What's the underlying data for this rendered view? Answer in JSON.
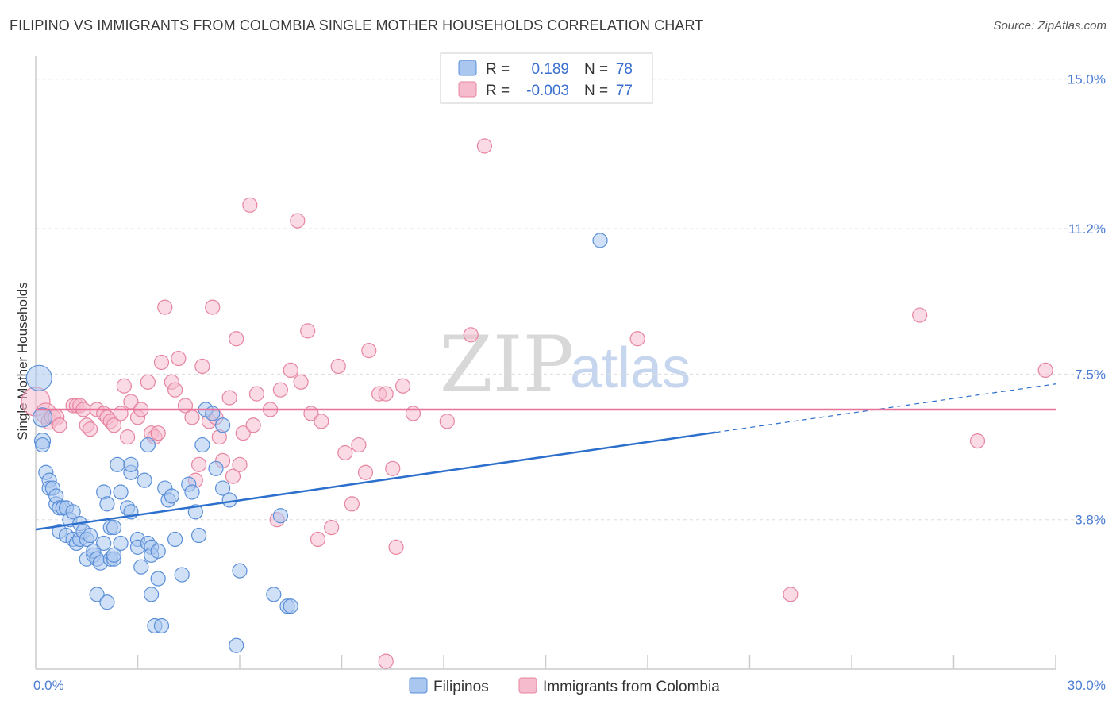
{
  "title": "FILIPINO VS IMMIGRANTS FROM COLOMBIA SINGLE MOTHER HOUSEHOLDS CORRELATION CHART",
  "source": "Source: ZipAtlas.com",
  "watermark": {
    "part1": "ZIP",
    "part2": "atlas"
  },
  "colors": {
    "blue_fill": "#a9c7ef",
    "blue_stroke": "#5a8fd8",
    "blue_line": "#2c6fcc",
    "pink_fill": "#f6bccd",
    "pink_stroke": "#e6859f",
    "pink_line": "#e8739a",
    "tick": "#4a7cd4",
    "grid": "#dddddd"
  },
  "legend": {
    "rows": [
      {
        "series": "blue",
        "r_label": "R =",
        "r_value": "0.189",
        "n_label": "N =",
        "n_value": "78"
      },
      {
        "series": "pink",
        "r_label": "R =",
        "r_value": "-0.003",
        "n_label": "N =",
        "n_value": "77"
      }
    ]
  },
  "chart_data": {
    "type": "scatter",
    "title": "FILIPINO VS IMMIGRANTS FROM COLOMBIA SINGLE MOTHER HOUSEHOLDS CORRELATION CHART",
    "xlabel": "",
    "ylabel": "Single Mother Households",
    "xlim": [
      0,
      30
    ],
    "ylim": [
      0,
      15.6
    ],
    "x_tick_labels": [
      {
        "value": 0,
        "label": "0.0%"
      },
      {
        "value": 30,
        "label": "30.0%"
      }
    ],
    "y_tick_labels": [
      {
        "value": 3.8,
        "label": "3.8%"
      },
      {
        "value": 7.5,
        "label": "7.5%"
      },
      {
        "value": 11.2,
        "label": "11.2%"
      },
      {
        "value": 15.0,
        "label": "15.0%"
      }
    ],
    "series": [
      {
        "name": "Filipinos",
        "color": "blue",
        "trend": {
          "x0": 0,
          "y0": 3.55,
          "x1": 20,
          "y1": 6.02,
          "dash_to_x": 30,
          "dash_to_y": 7.25
        },
        "points": [
          [
            0.1,
            7.4,
            16
          ],
          [
            0.2,
            6.4,
            12
          ],
          [
            0.2,
            5.8,
            10
          ],
          [
            0.2,
            5.7,
            9
          ],
          [
            0.3,
            5.0,
            9
          ],
          [
            0.4,
            4.8,
            9
          ],
          [
            0.4,
            4.6,
            9
          ],
          [
            0.5,
            4.6,
            9
          ],
          [
            0.6,
            4.2,
            9
          ],
          [
            0.6,
            4.4,
            9
          ],
          [
            0.7,
            4.1,
            9
          ],
          [
            0.7,
            3.5,
            9
          ],
          [
            0.8,
            4.1,
            9
          ],
          [
            0.9,
            4.1,
            9
          ],
          [
            0.9,
            3.4,
            9
          ],
          [
            1.0,
            3.8,
            9
          ],
          [
            1.1,
            4.0,
            9
          ],
          [
            1.1,
            3.3,
            9
          ],
          [
            1.2,
            3.2,
            9
          ],
          [
            1.3,
            3.7,
            9
          ],
          [
            1.3,
            3.3,
            9
          ],
          [
            1.4,
            3.5,
            9
          ],
          [
            1.5,
            3.3,
            9
          ],
          [
            1.5,
            2.8,
            9
          ],
          [
            1.6,
            3.4,
            9
          ],
          [
            1.7,
            2.9,
            9
          ],
          [
            1.7,
            3.0,
            9
          ],
          [
            1.8,
            2.8,
            9
          ],
          [
            1.8,
            1.9,
            9
          ],
          [
            1.9,
            2.7,
            9
          ],
          [
            2.0,
            4.5,
            9
          ],
          [
            2.0,
            3.2,
            9
          ],
          [
            2.1,
            4.2,
            9
          ],
          [
            2.1,
            1.7,
            9
          ],
          [
            2.2,
            3.6,
            9
          ],
          [
            2.2,
            2.8,
            9
          ],
          [
            2.3,
            2.8,
            9
          ],
          [
            2.3,
            3.6,
            9
          ],
          [
            2.3,
            2.9,
            9
          ],
          [
            2.4,
            5.2,
            9
          ],
          [
            2.5,
            4.5,
            9
          ],
          [
            2.5,
            3.2,
            9
          ],
          [
            2.7,
            4.1,
            9
          ],
          [
            2.8,
            5.0,
            9
          ],
          [
            2.8,
            5.2,
            9
          ],
          [
            2.8,
            4.0,
            9
          ],
          [
            3.0,
            3.3,
            9
          ],
          [
            3.0,
            3.1,
            9
          ],
          [
            3.1,
            2.6,
            9
          ],
          [
            3.2,
            4.8,
            9
          ],
          [
            3.3,
            5.7,
            9
          ],
          [
            3.3,
            3.2,
            9
          ],
          [
            3.4,
            3.1,
            9
          ],
          [
            3.4,
            2.9,
            9
          ],
          [
            3.4,
            1.9,
            9
          ],
          [
            3.5,
            1.1,
            9
          ],
          [
            3.6,
            2.3,
            9
          ],
          [
            3.6,
            3.0,
            9
          ],
          [
            3.7,
            1.1,
            9
          ],
          [
            3.8,
            4.6,
            9
          ],
          [
            3.9,
            4.3,
            9
          ],
          [
            4.0,
            4.4,
            9
          ],
          [
            4.1,
            3.3,
            9
          ],
          [
            4.3,
            2.4,
            9
          ],
          [
            4.5,
            4.7,
            9
          ],
          [
            4.6,
            4.5,
            9
          ],
          [
            4.7,
            4.0,
            9
          ],
          [
            4.8,
            3.4,
            9
          ],
          [
            4.9,
            5.7,
            9
          ],
          [
            5.0,
            6.6,
            9
          ],
          [
            5.2,
            6.5,
            9
          ],
          [
            5.3,
            5.1,
            9
          ],
          [
            5.5,
            6.2,
            9
          ],
          [
            5.5,
            4.6,
            9
          ],
          [
            5.7,
            4.3,
            9
          ],
          [
            5.9,
            0.6,
            9
          ],
          [
            6.0,
            2.5,
            9
          ],
          [
            7.0,
            1.9,
            9
          ],
          [
            7.2,
            3.9,
            9
          ],
          [
            7.4,
            1.6,
            9
          ],
          [
            7.5,
            1.6,
            9
          ],
          [
            16.6,
            10.9,
            9
          ]
        ]
      },
      {
        "name": "Immigrants from Colombia",
        "color": "pink",
        "trend": {
          "x0": 0,
          "y0": 6.6,
          "x1": 30,
          "y1": 6.6
        },
        "points": [
          [
            0.0,
            6.8,
            18
          ],
          [
            0.3,
            6.5,
            13
          ],
          [
            0.4,
            6.3,
            10
          ],
          [
            0.5,
            6.4,
            10
          ],
          [
            0.6,
            6.4,
            10
          ],
          [
            0.7,
            6.2,
            9
          ],
          [
            1.1,
            6.7,
            9
          ],
          [
            1.2,
            6.7,
            9
          ],
          [
            1.3,
            6.7,
            9
          ],
          [
            1.4,
            6.6,
            9
          ],
          [
            1.5,
            6.2,
            9
          ],
          [
            1.6,
            6.1,
            9
          ],
          [
            1.8,
            6.6,
            9
          ],
          [
            2.0,
            6.5,
            9
          ],
          [
            2.1,
            6.4,
            9
          ],
          [
            2.2,
            6.3,
            9
          ],
          [
            2.3,
            6.2,
            9
          ],
          [
            2.5,
            6.5,
            9
          ],
          [
            2.6,
            7.2,
            9
          ],
          [
            2.7,
            5.9,
            9
          ],
          [
            2.8,
            6.8,
            9
          ],
          [
            3.0,
            6.4,
            9
          ],
          [
            3.1,
            6.6,
            9
          ],
          [
            3.3,
            7.3,
            9
          ],
          [
            3.4,
            6.0,
            9
          ],
          [
            3.5,
            5.9,
            9
          ],
          [
            3.6,
            6.0,
            9
          ],
          [
            3.7,
            7.8,
            9
          ],
          [
            3.8,
            9.2,
            9
          ],
          [
            4.0,
            7.3,
            9
          ],
          [
            4.1,
            7.1,
            9
          ],
          [
            4.2,
            7.9,
            9
          ],
          [
            4.4,
            6.7,
            9
          ],
          [
            4.6,
            6.4,
            9
          ],
          [
            4.7,
            4.8,
            9
          ],
          [
            4.8,
            5.2,
            9
          ],
          [
            4.9,
            7.7,
            9
          ],
          [
            5.1,
            6.3,
            9
          ],
          [
            5.2,
            9.2,
            9
          ],
          [
            5.3,
            6.4,
            9
          ],
          [
            5.4,
            5.9,
            9
          ],
          [
            5.5,
            5.3,
            9
          ],
          [
            5.7,
            6.9,
            9
          ],
          [
            5.8,
            4.9,
            9
          ],
          [
            5.9,
            8.4,
            9
          ],
          [
            6.0,
            5.2,
            9
          ],
          [
            6.1,
            6.0,
            9
          ],
          [
            6.3,
            11.8,
            9
          ],
          [
            6.4,
            6.2,
            9
          ],
          [
            6.5,
            7.0,
            9
          ],
          [
            6.9,
            6.6,
            9
          ],
          [
            7.1,
            3.8,
            9
          ],
          [
            7.2,
            7.1,
            9
          ],
          [
            7.5,
            7.6,
            9
          ],
          [
            7.7,
            11.4,
            9
          ],
          [
            7.8,
            7.3,
            9
          ],
          [
            8.0,
            8.6,
            9
          ],
          [
            8.1,
            6.5,
            9
          ],
          [
            8.3,
            3.3,
            9
          ],
          [
            8.4,
            6.3,
            9
          ],
          [
            8.7,
            3.6,
            9
          ],
          [
            8.9,
            7.7,
            9
          ],
          [
            9.1,
            5.5,
            9
          ],
          [
            9.3,
            4.2,
            9
          ],
          [
            9.5,
            5.7,
            9
          ],
          [
            9.7,
            5.0,
            9
          ],
          [
            9.8,
            8.1,
            9
          ],
          [
            10.1,
            7.0,
            9
          ],
          [
            10.3,
            7.0,
            9
          ],
          [
            10.3,
            0.2,
            9
          ],
          [
            10.5,
            5.1,
            9
          ],
          [
            10.6,
            3.1,
            9
          ],
          [
            10.8,
            7.2,
            9
          ],
          [
            11.1,
            6.5,
            9
          ],
          [
            12.1,
            6.3,
            9
          ],
          [
            12.8,
            8.5,
            9
          ],
          [
            13.2,
            13.3,
            9
          ],
          [
            17.7,
            8.4,
            9
          ],
          [
            22.2,
            1.9,
            9
          ],
          [
            26.0,
            9.0,
            9
          ],
          [
            27.7,
            5.8,
            9
          ],
          [
            29.7,
            7.6,
            9
          ]
        ]
      }
    ]
  },
  "bottom_legend": [
    {
      "series": "blue",
      "label": "Filipinos"
    },
    {
      "series": "pink",
      "label": "Immigrants from Colombia"
    }
  ]
}
